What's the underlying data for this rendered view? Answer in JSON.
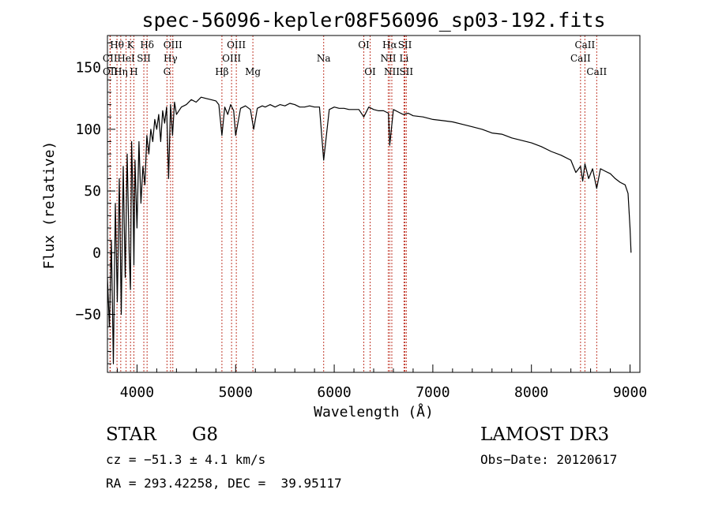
{
  "chart_data": {
    "type": "line",
    "title": "spec-56096-kepler08F56096_sp03-192.fits",
    "xlabel": "Wavelength (Å)",
    "ylabel": "Flux (relative)",
    "xlim": [
      3700,
      9100
    ],
    "ylim": [
      -97,
      176
    ],
    "xticks": [
      4000,
      5000,
      6000,
      7000,
      8000,
      9000
    ],
    "yticks": [
      -50,
      0,
      50,
      100,
      150
    ],
    "grid": false,
    "series": [
      {
        "name": "flux",
        "x": [
          3700,
          3720,
          3740,
          3760,
          3780,
          3800,
          3820,
          3840,
          3860,
          3880,
          3900,
          3920,
          3933,
          3945,
          3960,
          3968,
          3980,
          4000,
          4020,
          4040,
          4060,
          4080,
          4100,
          4120,
          4140,
          4160,
          4180,
          4200,
          4220,
          4240,
          4260,
          4280,
          4300,
          4320,
          4340,
          4360,
          4380,
          4400,
          4450,
          4500,
          4550,
          4600,
          4650,
          4700,
          4750,
          4800,
          4830,
          4861,
          4890,
          4920,
          4950,
          4980,
          5000,
          5050,
          5100,
          5150,
          5183,
          5220,
          5270,
          5300,
          5350,
          5400,
          5450,
          5500,
          5550,
          5600,
          5650,
          5700,
          5750,
          5800,
          5850,
          5893,
          5950,
          6000,
          6050,
          6100,
          6150,
          6200,
          6250,
          6300,
          6350,
          6400,
          6450,
          6500,
          6550,
          6563,
          6600,
          6650,
          6700,
          6750,
          6800,
          6900,
          7000,
          7100,
          7200,
          7300,
          7400,
          7500,
          7600,
          7700,
          7800,
          7900,
          8000,
          8100,
          8200,
          8300,
          8400,
          8450,
          8498,
          8520,
          8542,
          8580,
          8620,
          8662,
          8700,
          8750,
          8800,
          8850,
          8900,
          8950,
          8980,
          9000,
          9010
        ],
        "values": [
          -20,
          -60,
          10,
          -90,
          40,
          -40,
          60,
          -50,
          70,
          -20,
          80,
          0,
          -30,
          90,
          40,
          -10,
          75,
          20,
          90,
          40,
          70,
          55,
          95,
          80,
          100,
          90,
          108,
          100,
          112,
          90,
          115,
          105,
          118,
          60,
          120,
          95,
          122,
          112,
          118,
          120,
          124,
          122,
          126,
          125,
          124,
          123,
          120,
          95,
          118,
          112,
          120,
          115,
          95,
          117,
          119,
          116,
          100,
          117,
          119,
          118,
          120,
          118,
          120,
          119,
          121,
          120,
          118,
          118,
          119,
          118,
          118,
          75,
          116,
          118,
          117,
          117,
          116,
          116,
          116,
          110,
          118,
          116,
          115,
          115,
          113,
          87,
          116,
          114,
          112,
          113,
          111,
          110,
          108,
          107,
          106,
          104,
          102,
          100,
          97,
          96,
          93,
          91,
          89,
          86,
          82,
          79,
          75,
          65,
          70,
          58,
          72,
          60,
          68,
          52,
          68,
          66,
          64,
          60,
          57,
          55,
          48,
          20,
          0
        ]
      }
    ],
    "lines": [
      {
        "name": "Hθ",
        "x": 3797,
        "row": 0
      },
      {
        "name": "CII",
        "x": 3726,
        "row": 1
      },
      {
        "name": "OII",
        "x": 3729,
        "row": 2
      },
      {
        "name": "Hη",
        "x": 3835,
        "row": 2
      },
      {
        "name": "K",
        "x": 3934,
        "row": 0
      },
      {
        "name": "HeI",
        "x": 3889,
        "row": 1
      },
      {
        "name": "H",
        "x": 3968,
        "row": 2
      },
      {
        "name": "Hδ",
        "x": 4102,
        "row": 0
      },
      {
        "name": "SII",
        "x": 4069,
        "row": 1
      },
      {
        "name": "OIII",
        "x": 4363,
        "row": 0
      },
      {
        "name": "Hγ",
        "x": 4340,
        "row": 1
      },
      {
        "name": "G",
        "x": 4304,
        "row": 2
      },
      {
        "name": "Hβ",
        "x": 4861,
        "row": 2
      },
      {
        "name": "OIII",
        "x": 5007,
        "row": 0
      },
      {
        "name": "OIII",
        "x": 4959,
        "row": 1
      },
      {
        "name": "Mg",
        "x": 5175,
        "row": 2
      },
      {
        "name": "Na",
        "x": 5893,
        "row": 1
      },
      {
        "name": "OI",
        "x": 6300,
        "row": 0
      },
      {
        "name": "OI",
        "x": 6364,
        "row": 2
      },
      {
        "name": "Hα",
        "x": 6563,
        "row": 0
      },
      {
        "name": "NII",
        "x": 6548,
        "row": 1
      },
      {
        "name": "NII",
        "x": 6584,
        "row": 2
      },
      {
        "name": "SII",
        "x": 6717,
        "row": 0
      },
      {
        "name": "Li",
        "x": 6708,
        "row": 1
      },
      {
        "name": "SII",
        "x": 6731,
        "row": 2
      },
      {
        "name": "CaII",
        "x": 8542,
        "row": 0
      },
      {
        "name": "CaII",
        "x": 8498,
        "row": 1
      },
      {
        "name": "CaII",
        "x": 8662,
        "row": 2
      }
    ]
  },
  "info": {
    "object_class": "STAR",
    "subclass": "G8",
    "survey": "LAMOST DR3",
    "redshift": "cz = −51.3 ± 4.1 km/s",
    "obs_date": "Obs−Date: 20120617",
    "coords": "RA = 293.42258, DEC =  39.95117"
  },
  "colors": {
    "spectrum": "#000000",
    "line_markers": "#c0392b",
    "axes": "#000000",
    "background": "#ffffff"
  }
}
